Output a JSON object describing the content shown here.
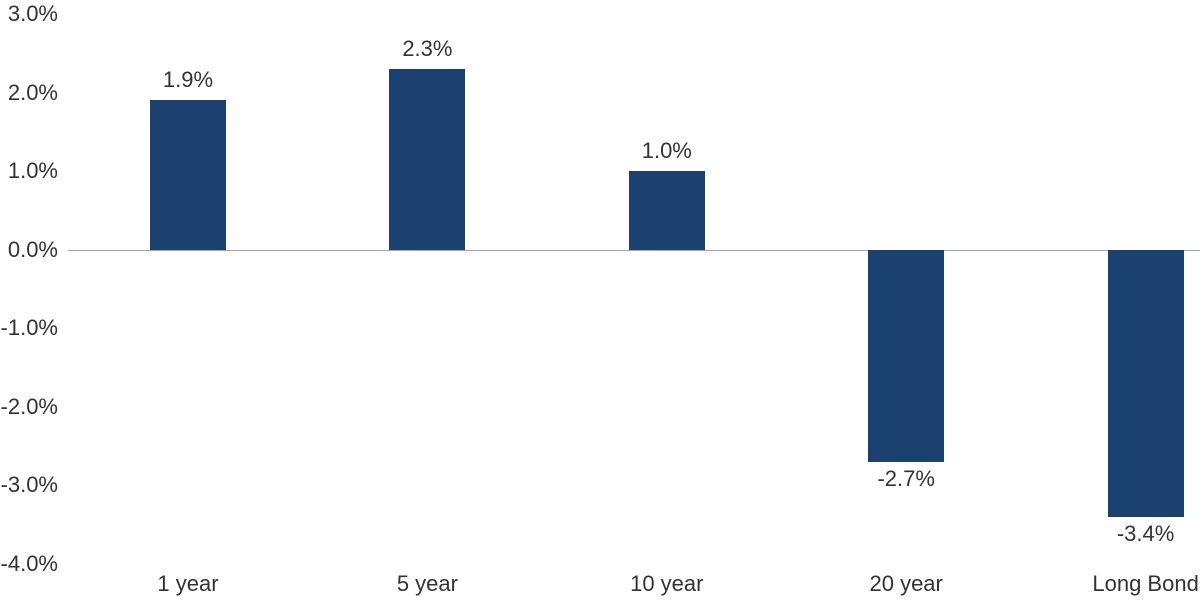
{
  "colors": {
    "bar": "#1B4170",
    "axis_line": "#A6A6A6",
    "text": "#333333",
    "background": "#FFFFFF"
  },
  "chart_data": {
    "type": "bar",
    "title": "",
    "xlabel": "",
    "ylabel": "",
    "categories": [
      "1 year",
      "5 year",
      "10 year",
      "20 year",
      "Long Bond"
    ],
    "values": [
      1.9,
      2.3,
      1.0,
      -2.7,
      -3.4
    ],
    "value_labels": [
      "1.9%",
      "2.3%",
      "1.0%",
      "-2.7%",
      "-3.4%"
    ],
    "ylim": [
      -4.0,
      3.0
    ],
    "yticks": [
      {
        "value": 3.0,
        "label": "3.0%"
      },
      {
        "value": 2.0,
        "label": "2.0%"
      },
      {
        "value": 1.0,
        "label": "1.0%"
      },
      {
        "value": 0.0,
        "label": "0.0%"
      },
      {
        "value": -1.0,
        "label": "-1.0%"
      },
      {
        "value": -2.0,
        "label": "-2.0%"
      },
      {
        "value": -3.0,
        "label": "-3.0%"
      },
      {
        "value": -4.0,
        "label": "-4.0%"
      }
    ],
    "grid": false,
    "legend": false,
    "bar_color": "#1B4170",
    "baseline_value": 0.0
  }
}
